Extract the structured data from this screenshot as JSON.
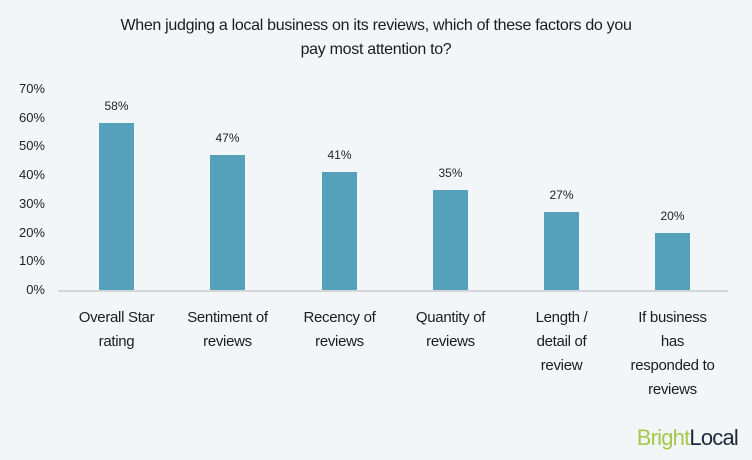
{
  "chart_data": {
    "type": "bar",
    "title": "When judging a local business on its reviews, which of these factors do you pay most attention to?",
    "categories": [
      "Overall Star rating",
      "Sentiment of reviews",
      "Recency of reviews",
      "Quantity of reviews",
      "Length / detail of review",
      "If business has responded to reviews"
    ],
    "values": [
      58,
      47,
      41,
      35,
      27,
      20
    ],
    "value_labels": [
      "58%",
      "47%",
      "41%",
      "35%",
      "27%",
      "20%"
    ],
    "xlabel": "",
    "ylabel": "",
    "ylim": [
      0,
      70
    ],
    "yticks": [
      "0%",
      "10%",
      "20%",
      "30%",
      "40%",
      "50%",
      "60%",
      "70%"
    ],
    "grid": false,
    "legend": "none",
    "bar_color": "#55a1bb"
  },
  "title_lines": [
    "When judging a local business on its reviews, which of these factors do you",
    "pay most attention to?"
  ],
  "category_lines": [
    [
      "Overall Star",
      "rating"
    ],
    [
      "Sentiment of",
      "reviews"
    ],
    [
      "Recency of",
      "reviews"
    ],
    [
      "Quantity of",
      "reviews"
    ],
    [
      "Length /",
      "detail of",
      "review"
    ],
    [
      "If business",
      "has",
      "responded to",
      "reviews"
    ]
  ],
  "logo": {
    "part1": "Bright",
    "part2": "Local",
    "color1": "#a6c84a",
    "color2": "#1e2a3a"
  }
}
